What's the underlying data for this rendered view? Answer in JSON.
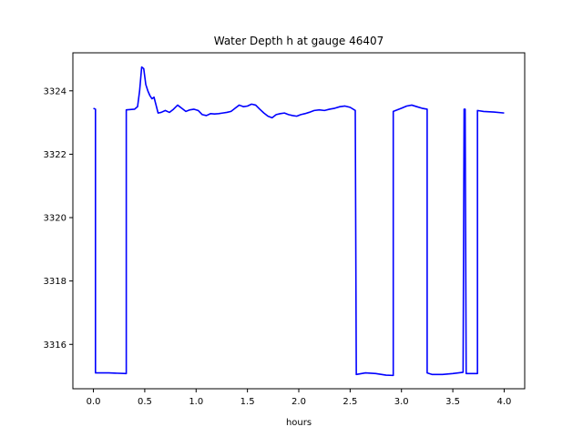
{
  "chart_data": {
    "type": "line",
    "title": "Water Depth h at gauge 46407",
    "xlabel": "hours",
    "ylabel": "",
    "xlim": [
      -0.2,
      4.2
    ],
    "ylim": [
      3314.6,
      3325.2
    ],
    "xticks": [
      0.0,
      0.5,
      1.0,
      1.5,
      2.0,
      2.5,
      3.0,
      3.5,
      4.0
    ],
    "xtick_labels": [
      "0.0",
      "0.5",
      "1.0",
      "1.5",
      "2.0",
      "2.5",
      "3.0",
      "3.5",
      "4.0"
    ],
    "yticks": [
      3316,
      3318,
      3320,
      3322,
      3324
    ],
    "ytick_labels": [
      "3316",
      "3318",
      "3320",
      "3322",
      "3324"
    ],
    "grid": false,
    "series": [
      {
        "color": "#0000ff",
        "x": [
          0.0,
          0.02,
          0.02,
          0.15,
          0.32,
          0.32,
          0.4,
          0.43,
          0.45,
          0.47,
          0.49,
          0.51,
          0.53,
          0.55,
          0.57,
          0.59,
          0.61,
          0.63,
          0.66,
          0.7,
          0.74,
          0.78,
          0.82,
          0.86,
          0.9,
          0.94,
          0.98,
          1.02,
          1.06,
          1.1,
          1.14,
          1.18,
          1.22,
          1.26,
          1.3,
          1.34,
          1.38,
          1.42,
          1.46,
          1.5,
          1.54,
          1.58,
          1.62,
          1.66,
          1.7,
          1.74,
          1.78,
          1.82,
          1.86,
          1.9,
          1.94,
          1.98,
          2.02,
          2.06,
          2.1,
          2.15,
          2.2,
          2.25,
          2.3,
          2.35,
          2.4,
          2.45,
          2.5,
          2.55,
          2.56,
          2.56,
          2.65,
          2.75,
          2.85,
          2.92,
          2.92,
          3.0,
          3.05,
          3.1,
          3.15,
          3.2,
          3.25,
          3.25,
          3.3,
          3.4,
          3.5,
          3.6,
          3.61,
          3.62,
          3.63,
          3.63,
          3.74,
          3.74,
          3.8,
          3.9,
          4.0
        ],
        "y": [
          3323.45,
          3323.42,
          3315.1,
          3315.1,
          3315.08,
          3323.4,
          3323.42,
          3323.5,
          3324.0,
          3324.75,
          3324.7,
          3324.2,
          3324.0,
          3323.85,
          3323.75,
          3323.8,
          3323.55,
          3323.3,
          3323.32,
          3323.38,
          3323.32,
          3323.42,
          3323.55,
          3323.45,
          3323.35,
          3323.4,
          3323.42,
          3323.38,
          3323.25,
          3323.22,
          3323.28,
          3323.27,
          3323.28,
          3323.3,
          3323.32,
          3323.35,
          3323.45,
          3323.55,
          3323.5,
          3323.52,
          3323.58,
          3323.55,
          3323.42,
          3323.3,
          3323.2,
          3323.15,
          3323.25,
          3323.28,
          3323.3,
          3323.25,
          3323.22,
          3323.2,
          3323.25,
          3323.28,
          3323.32,
          3323.38,
          3323.4,
          3323.38,
          3323.42,
          3323.45,
          3323.5,
          3323.52,
          3323.48,
          3323.38,
          3315.05,
          3315.05,
          3315.1,
          3315.08,
          3315.03,
          3315.02,
          3323.35,
          3323.45,
          3323.52,
          3323.55,
          3323.5,
          3323.45,
          3323.42,
          3315.1,
          3315.05,
          3315.05,
          3315.08,
          3315.12,
          3323.42,
          3323.42,
          3315.1,
          3315.08,
          3315.08,
          3323.38,
          3323.35,
          3323.33,
          3323.3
        ]
      }
    ]
  }
}
